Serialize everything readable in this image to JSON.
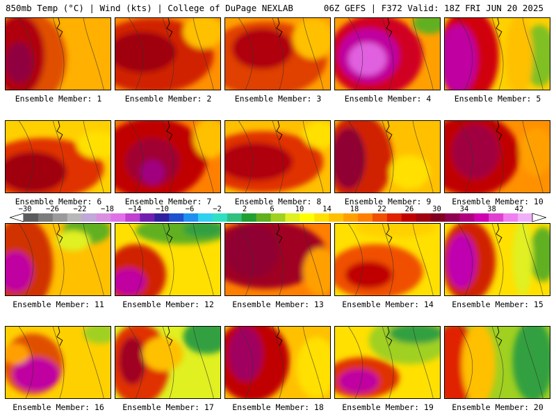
{
  "header": {
    "left": "850mb Temp (°C) | Wind (kts) | College of DuPage NEXLAB",
    "right": "06Z GEFS | F372 Valid: 18Z FRI JUN 20 2025"
  },
  "colorbar": {
    "tick_labels": [
      "−30",
      "−26",
      "−22",
      "−18",
      "−14",
      "−10",
      "−6",
      "−2",
      "2",
      "6",
      "10",
      "14",
      "18",
      "22",
      "26",
      "30",
      "34",
      "38",
      "42"
    ],
    "colors": [
      "#5c5c5c",
      "#7c7c7c",
      "#9a9a9a",
      "#b8b8b8",
      "#c0a8d8",
      "#d890e0",
      "#e070e8",
      "#c040d0",
      "#7020b0",
      "#3020a0",
      "#2050d0",
      "#2090f0",
      "#30d0f0",
      "#30e0c0",
      "#30c080",
      "#20a030",
      "#60b020",
      "#a0d020",
      "#e0f020",
      "#ffff00",
      "#ffe000",
      "#ffc000",
      "#ffa000",
      "#ff8000",
      "#f05000",
      "#e02000",
      "#c00000",
      "#a00010",
      "#800020",
      "#900050",
      "#b00080",
      "#d000b0",
      "#e040d0",
      "#f080f0",
      "#f0b0f8"
    ]
  },
  "panels": [
    {
      "label": "Ensemble Member: 1"
    },
    {
      "label": "Ensemble Member: 2"
    },
    {
      "label": "Ensemble Member: 3"
    },
    {
      "label": "Ensemble Member: 4"
    },
    {
      "label": "Ensemble Member: 5"
    },
    {
      "label": "Ensemble Member: 6"
    },
    {
      "label": "Ensemble Member: 7"
    },
    {
      "label": "Ensemble Member: 8"
    },
    {
      "label": "Ensemble Member: 9"
    },
    {
      "label": "Ensemble Member: 10"
    },
    {
      "label": "Ensemble Member: 11"
    },
    {
      "label": "Ensemble Member: 12"
    },
    {
      "label": "Ensemble Member: 13"
    },
    {
      "label": "Ensemble Member: 14"
    },
    {
      "label": "Ensemble Member: 15"
    },
    {
      "label": "Ensemble Member: 16"
    },
    {
      "label": "Ensemble Member: 17"
    },
    {
      "label": "Ensemble Member: 18"
    },
    {
      "label": "Ensemble Member: 19"
    },
    {
      "label": "Ensemble Member: 20"
    }
  ]
}
